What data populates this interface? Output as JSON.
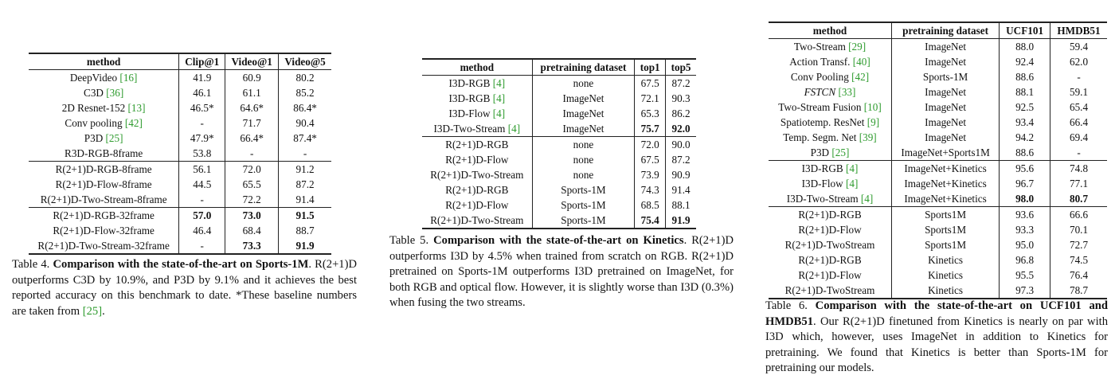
{
  "table4": {
    "columns": [
      "method",
      "Clip@1",
      "Video@1",
      "Video@5"
    ],
    "groups": [
      [
        {
          "method": "DeepVideo",
          "cite": "[16]",
          "vals": [
            "41.9",
            "60.9",
            "80.2"
          ],
          "bold": [
            false,
            false,
            false
          ]
        },
        {
          "method": "C3D",
          "cite": "[36]",
          "vals": [
            "46.1",
            "61.1",
            "85.2"
          ],
          "bold": [
            false,
            false,
            false
          ]
        },
        {
          "method": "2D Resnet-152",
          "cite": "[13]",
          "vals": [
            "46.5*",
            "64.6*",
            "86.4*"
          ],
          "bold": [
            false,
            false,
            false
          ]
        },
        {
          "method": "Conv pooling",
          "cite": "[42]",
          "vals": [
            "-",
            "71.7",
            "90.4"
          ],
          "bold": [
            false,
            false,
            false
          ]
        },
        {
          "method": "P3D",
          "cite": "[25]",
          "vals": [
            "47.9*",
            "66.4*",
            "87.4*"
          ],
          "bold": [
            false,
            false,
            false
          ]
        },
        {
          "method": "R3D-RGB-8frame",
          "cite": "",
          "vals": [
            "53.8",
            "-",
            "-"
          ],
          "bold": [
            false,
            false,
            false
          ]
        }
      ],
      [
        {
          "method": "R(2+1)D-RGB-8frame",
          "cite": "",
          "vals": [
            "56.1",
            "72.0",
            "91.2"
          ],
          "bold": [
            false,
            false,
            false
          ]
        },
        {
          "method": "R(2+1)D-Flow-8frame",
          "cite": "",
          "vals": [
            "44.5",
            "65.5",
            "87.2"
          ],
          "bold": [
            false,
            false,
            false
          ]
        },
        {
          "method": "R(2+1)D-Two-Stream-8frame",
          "cite": "",
          "vals": [
            "-",
            "72.2",
            "91.4"
          ],
          "bold": [
            false,
            false,
            false
          ]
        }
      ],
      [
        {
          "method": "R(2+1)D-RGB-32frame",
          "cite": "",
          "vals": [
            "57.0",
            "73.0",
            "91.5"
          ],
          "bold": [
            true,
            true,
            true
          ]
        },
        {
          "method": "R(2+1)D-Flow-32frame",
          "cite": "",
          "vals": [
            "46.4",
            "68.4",
            "88.7"
          ],
          "bold": [
            false,
            false,
            false
          ]
        },
        {
          "method": "R(2+1)D-Two-Stream-32frame",
          "cite": "",
          "vals": [
            "-",
            "73.3",
            "91.9"
          ],
          "bold": [
            false,
            true,
            true
          ]
        }
      ]
    ],
    "caption": {
      "label": "Table 4.",
      "title": "Comparison with the state-of-the-art on Sports-1M",
      "body": ". R(2+1)D outperforms C3D by 10.9%, and P3D by 9.1% and it achieves the best reported accuracy on this benchmark to date. *These baseline numbers are taken from ",
      "cite": "[25]",
      "end": "."
    }
  },
  "table5": {
    "columns": [
      "method",
      "pretraining dataset",
      "top1",
      "top5"
    ],
    "groups": [
      [
        {
          "method": "I3D-RGB",
          "cite": "[4]",
          "vals": [
            "none",
            "67.5",
            "87.2"
          ],
          "bold": [
            false,
            false,
            false
          ]
        },
        {
          "method": "I3D-RGB",
          "cite": "[4]",
          "vals": [
            "ImageNet",
            "72.1",
            "90.3"
          ],
          "bold": [
            false,
            false,
            false
          ]
        },
        {
          "method": "I3D-Flow",
          "cite": "[4]",
          "vals": [
            "ImageNet",
            "65.3",
            "86.2"
          ],
          "bold": [
            false,
            false,
            false
          ]
        },
        {
          "method": "I3D-Two-Stream",
          "cite": "[4]",
          "vals": [
            "ImageNet",
            "75.7",
            "92.0"
          ],
          "bold": [
            false,
            true,
            true
          ]
        }
      ],
      [
        {
          "method": "R(2+1)D-RGB",
          "cite": "",
          "vals": [
            "none",
            "72.0",
            "90.0"
          ],
          "bold": [
            false,
            false,
            false
          ]
        },
        {
          "method": "R(2+1)D-Flow",
          "cite": "",
          "vals": [
            "none",
            "67.5",
            "87.2"
          ],
          "bold": [
            false,
            false,
            false
          ]
        },
        {
          "method": "R(2+1)D-Two-Stream",
          "cite": "",
          "vals": [
            "none",
            "73.9",
            "90.9"
          ],
          "bold": [
            false,
            false,
            false
          ]
        },
        {
          "method": "R(2+1)D-RGB",
          "cite": "",
          "vals": [
            "Sports-1M",
            "74.3",
            "91.4"
          ],
          "bold": [
            false,
            false,
            false
          ]
        },
        {
          "method": "R(2+1)D-Flow",
          "cite": "",
          "vals": [
            "Sports-1M",
            "68.5",
            "88.1"
          ],
          "bold": [
            false,
            false,
            false
          ]
        },
        {
          "method": "R(2+1)D-Two-Stream",
          "cite": "",
          "vals": [
            "Sports-1M",
            "75.4",
            "91.9"
          ],
          "bold": [
            false,
            true,
            true
          ]
        }
      ]
    ],
    "caption": {
      "label": "Table 5.",
      "title": "Comparison with the state-of-the-art on Kinetics",
      "body": ". R(2+1)D outperforms I3D by 4.5% when trained from scratch on RGB. R(2+1)D pretrained on Sports-1M outperforms I3D pretrained on ImageNet, for both RGB and optical flow. However, it is slightly worse than I3D (0.3%) when fusing the two streams."
    }
  },
  "table6": {
    "columns": [
      "method",
      "pretraining dataset",
      "UCF101",
      "HMDB51"
    ],
    "groups": [
      [
        {
          "method": "Two-Stream",
          "cite": "[29]",
          "vals": [
            "ImageNet",
            "88.0",
            "59.4"
          ],
          "bold": [
            false,
            false,
            false
          ]
        },
        {
          "method": "Action Transf.",
          "cite": "[40]",
          "vals": [
            "ImageNet",
            "92.4",
            "62.0"
          ],
          "bold": [
            false,
            false,
            false
          ]
        },
        {
          "method": "Conv Pooling",
          "cite": "[42]",
          "vals": [
            "Sports-1M",
            "88.6",
            "-"
          ],
          "bold": [
            false,
            false,
            false
          ]
        },
        {
          "method": "FSTCN",
          "cite": "[33]",
          "vals": [
            "ImageNet",
            "88.1",
            "59.1"
          ],
          "bold": [
            false,
            false,
            false
          ],
          "math": true
        },
        {
          "method": "Two-Stream Fusion",
          "cite": "[10]",
          "vals": [
            "ImageNet",
            "92.5",
            "65.4"
          ],
          "bold": [
            false,
            false,
            false
          ]
        },
        {
          "method": "Spatiotemp. ResNet",
          "cite": "[9]",
          "vals": [
            "ImageNet",
            "93.4",
            "66.4"
          ],
          "bold": [
            false,
            false,
            false
          ]
        },
        {
          "method": "Temp. Segm. Net",
          "cite": "[39]",
          "vals": [
            "ImageNet",
            "94.2",
            "69.4"
          ],
          "bold": [
            false,
            false,
            false
          ]
        },
        {
          "method": "P3D",
          "cite": "[25]",
          "vals": [
            "ImageNet+Sports1M",
            "88.6",
            "-"
          ],
          "bold": [
            false,
            false,
            false
          ]
        }
      ],
      [
        {
          "method": "I3D-RGB",
          "cite": "[4]",
          "vals": [
            "ImageNet+Kinetics",
            "95.6",
            "74.8"
          ],
          "bold": [
            false,
            false,
            false
          ]
        },
        {
          "method": "I3D-Flow",
          "cite": "[4]",
          "vals": [
            "ImageNet+Kinetics",
            "96.7",
            "77.1"
          ],
          "bold": [
            false,
            false,
            false
          ]
        },
        {
          "method": "I3D-Two-Stream",
          "cite": "[4]",
          "vals": [
            "ImageNet+Kinetics",
            "98.0",
            "80.7"
          ],
          "bold": [
            false,
            true,
            true
          ]
        }
      ],
      [
        {
          "method": "R(2+1)D-RGB",
          "cite": "",
          "vals": [
            "Sports1M",
            "93.6",
            "66.6"
          ],
          "bold": [
            false,
            false,
            false
          ]
        },
        {
          "method": "R(2+1)D-Flow",
          "cite": "",
          "vals": [
            "Sports1M",
            "93.3",
            "70.1"
          ],
          "bold": [
            false,
            false,
            false
          ]
        },
        {
          "method": "R(2+1)D-TwoStream",
          "cite": "",
          "vals": [
            "Sports1M",
            "95.0",
            "72.7"
          ],
          "bold": [
            false,
            false,
            false
          ]
        },
        {
          "method": "R(2+1)D-RGB",
          "cite": "",
          "vals": [
            "Kinetics",
            "96.8",
            "74.5"
          ],
          "bold": [
            false,
            false,
            false
          ]
        },
        {
          "method": "R(2+1)D-Flow",
          "cite": "",
          "vals": [
            "Kinetics",
            "95.5",
            "76.4"
          ],
          "bold": [
            false,
            false,
            false
          ]
        },
        {
          "method": "R(2+1)D-TwoStream",
          "cite": "",
          "vals": [
            "Kinetics",
            "97.3",
            "78.7"
          ],
          "bold": [
            false,
            false,
            false
          ]
        }
      ]
    ],
    "caption": {
      "label": "Table 6.",
      "title": "Comparison with the state-of-the-art on UCF101 and HMDB51",
      "body": ". Our R(2+1)D finetuned from Kinetics is nearly on par with I3D which, however, uses ImageNet in addition to Kinetics for pretraining. We found that Kinetics is better than Sports-1M for pretraining our models."
    }
  }
}
